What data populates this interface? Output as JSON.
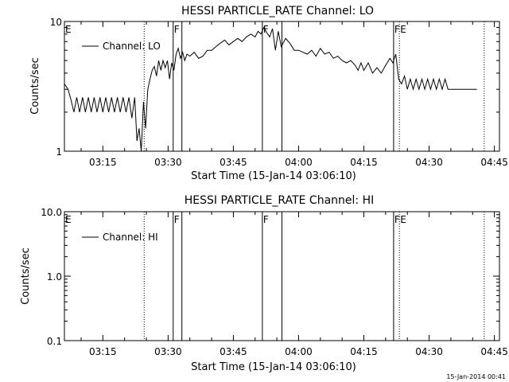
{
  "footer_timestamp": "15-Jan-2014 00:41",
  "chart_data": [
    {
      "type": "line",
      "title": "HESSI PARTICLE_RATE Channel: LO",
      "xlabel": "Start Time (15-Jan-14 03:06:10)",
      "ylabel": "Counts/sec",
      "y_scale": "log",
      "ylim": [
        1,
        10
      ],
      "y_ticks": [
        {
          "v": 1,
          "label": "1"
        },
        {
          "v": 10,
          "label": "10"
        }
      ],
      "xlim": [
        "03:06:10",
        "04:46:10"
      ],
      "x_ticks": [
        "03:15",
        "03:30",
        "03:45",
        "04:00",
        "04:15",
        "04:30",
        "04:45"
      ],
      "legend": {
        "label": "Channel: LO",
        "position": "top-left"
      },
      "markers": [
        {
          "time": "03:06:10",
          "style": "dotted",
          "label": "E"
        },
        {
          "time": "03:24:30",
          "style": "dotted",
          "label": ""
        },
        {
          "time": "03:31:10",
          "style": "solid",
          "label": "F"
        },
        {
          "time": "03:33:10",
          "style": "solid",
          "label": ""
        },
        {
          "time": "03:51:40",
          "style": "solid",
          "label": "F"
        },
        {
          "time": "03:56:10",
          "style": "solid",
          "label": ""
        },
        {
          "time": "04:21:50",
          "style": "solid",
          "label": "F"
        },
        {
          "time": "04:23:10",
          "style": "dotted",
          "label": "E"
        },
        {
          "time": "04:42:40",
          "style": "dotted",
          "label": ""
        }
      ],
      "series": [
        {
          "color": "#000000",
          "x": [
            "03:06:10",
            "03:07:00",
            "03:07:40",
            "03:08:20",
            "03:09:00",
            "03:09:40",
            "03:10:20",
            "03:11:00",
            "03:11:40",
            "03:12:20",
            "03:13:00",
            "03:13:40",
            "03:14:20",
            "03:15:00",
            "03:15:40",
            "03:16:20",
            "03:17:00",
            "03:17:40",
            "03:18:20",
            "03:19:00",
            "03:19:40",
            "03:20:20",
            "03:21:00",
            "03:21:40",
            "03:22:20",
            "03:22:50",
            "03:23:20",
            "03:23:50",
            "03:24:20",
            "03:24:50",
            "03:25:20",
            "03:25:50",
            "03:26:20",
            "03:26:50",
            "03:27:20",
            "03:27:50",
            "03:28:20",
            "03:28:50",
            "03:29:20",
            "03:29:50",
            "03:30:20",
            "03:30:50",
            "03:31:20",
            "03:31:50",
            "03:32:20",
            "03:32:50",
            "03:33:20",
            "03:33:50",
            "03:34:20",
            "03:35:00",
            "03:36:00",
            "03:37:00",
            "03:38:00",
            "03:39:00",
            "03:40:00",
            "03:41:00",
            "03:42:00",
            "03:43:00",
            "03:44:00",
            "03:45:00",
            "03:46:00",
            "03:47:00",
            "03:48:00",
            "03:49:00",
            "03:50:00",
            "03:50:40",
            "03:51:20",
            "03:52:00",
            "03:52:40",
            "03:53:20",
            "03:54:00",
            "03:54:40",
            "03:55:20",
            "03:56:00",
            "03:57:00",
            "03:58:00",
            "03:59:00",
            "04:00:00",
            "04:01:00",
            "04:02:00",
            "04:03:00",
            "04:04:00",
            "04:05:00",
            "04:06:00",
            "04:07:00",
            "04:08:00",
            "04:09:00",
            "04:10:00",
            "04:11:00",
            "04:12:00",
            "04:13:00",
            "04:13:40",
            "04:14:20",
            "04:15:00",
            "04:16:00",
            "04:17:00",
            "04:18:00",
            "04:19:00",
            "04:20:00",
            "04:21:00",
            "04:21:40",
            "04:22:20",
            "04:23:00",
            "04:23:40",
            "04:24:20",
            "04:25:00",
            "04:25:40",
            "04:26:20",
            "04:27:00",
            "04:27:40",
            "04:28:20",
            "04:29:00",
            "04:29:40",
            "04:30:20",
            "04:31:00",
            "04:31:40",
            "04:32:20",
            "04:33:00",
            "04:33:40",
            "04:34:20",
            "04:35:00",
            "04:35:40",
            "04:36:20",
            "04:37:00",
            "04:37:40",
            "04:38:20",
            "04:39:00",
            "04:40:00",
            "04:41:00"
          ],
          "values": [
            3.3,
            3.0,
            2.5,
            2.0,
            2.6,
            2.0,
            2.6,
            2.0,
            2.6,
            2.0,
            2.6,
            2.0,
            2.6,
            2.0,
            2.6,
            2.0,
            2.6,
            2.0,
            2.6,
            2.0,
            2.6,
            2.0,
            2.6,
            1.8,
            2.6,
            1.2,
            1.5,
            1.0,
            2.4,
            1.5,
            3.0,
            3.6,
            4.2,
            4.5,
            3.8,
            5.0,
            4.2,
            5.0,
            4.4,
            5.0,
            3.6,
            4.8,
            4.2,
            5.6,
            6.2,
            5.2,
            5.8,
            5.0,
            5.6,
            5.4,
            5.8,
            5.2,
            5.4,
            6.0,
            6.0,
            6.4,
            6.8,
            7.2,
            6.6,
            7.0,
            7.4,
            7.0,
            7.6,
            8.0,
            7.6,
            8.4,
            8.0,
            9.0,
            8.2,
            7.6,
            8.8,
            6.0,
            8.4,
            6.4,
            7.4,
            6.8,
            6.0,
            6.0,
            5.8,
            5.6,
            6.0,
            5.4,
            6.2,
            5.6,
            5.8,
            5.2,
            5.4,
            5.0,
            4.8,
            5.0,
            4.6,
            4.2,
            4.8,
            4.2,
            4.8,
            4.0,
            4.4,
            4.0,
            4.6,
            5.2,
            4.8,
            5.6,
            3.6,
            3.3,
            3.8,
            3.0,
            3.6,
            3.0,
            3.6,
            3.0,
            3.6,
            3.0,
            3.6,
            3.0,
            3.6,
            3.0,
            3.6,
            3.0,
            3.6,
            3.0,
            3.0,
            3.0,
            3.0,
            3.0,
            3.0,
            3.0,
            3.0,
            3.0,
            3.0
          ]
        }
      ]
    },
    {
      "type": "line",
      "title": "HESSI PARTICLE_RATE Channel: HI",
      "xlabel": "Start Time (15-Jan-14 03:06:10)",
      "ylabel": "Counts/sec",
      "y_scale": "log",
      "ylim": [
        0.1,
        10
      ],
      "y_ticks": [
        {
          "v": 0.1,
          "label": "0.1"
        },
        {
          "v": 1,
          "label": "1.0"
        },
        {
          "v": 10,
          "label": "10.0"
        }
      ],
      "xlim": [
        "03:06:10",
        "04:46:10"
      ],
      "x_ticks": [
        "03:15",
        "03:30",
        "03:45",
        "04:00",
        "04:15",
        "04:30",
        "04:45"
      ],
      "legend": {
        "label": "Channel: HI",
        "position": "top-left"
      },
      "markers": [
        {
          "time": "03:06:10",
          "style": "dotted",
          "label": "E"
        },
        {
          "time": "03:24:30",
          "style": "dotted",
          "label": ""
        },
        {
          "time": "03:31:10",
          "style": "solid",
          "label": "F"
        },
        {
          "time": "03:33:10",
          "style": "solid",
          "label": ""
        },
        {
          "time": "03:51:40",
          "style": "solid",
          "label": "F"
        },
        {
          "time": "03:56:10",
          "style": "solid",
          "label": ""
        },
        {
          "time": "04:21:50",
          "style": "solid",
          "label": "F"
        },
        {
          "time": "04:23:10",
          "style": "dotted",
          "label": "E"
        },
        {
          "time": "04:42:40",
          "style": "dotted",
          "label": ""
        }
      ],
      "series": []
    }
  ]
}
